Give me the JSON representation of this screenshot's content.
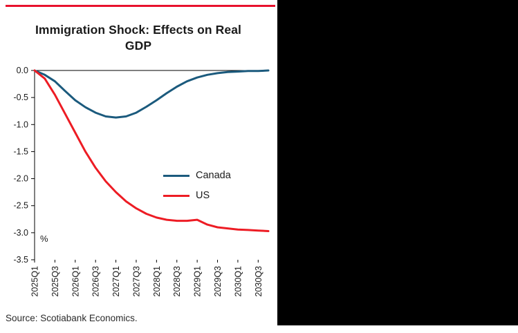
{
  "page": {
    "accent_rule_color": "#e8112d",
    "side_panel_color": "#000000"
  },
  "chart": {
    "title": "Immigration Shock: Effects on Real GDP",
    "unit_label": "%",
    "source": "Source: Scotiabank Economics."
  },
  "chart_data": {
    "type": "line",
    "title": "Immigration Shock: Effects on Real GDP",
    "xlabel": "",
    "ylabel": "%",
    "ylim": [
      -3.5,
      0
    ],
    "yticks": [
      0,
      -0.5,
      -1.0,
      -1.5,
      -2.0,
      -2.5,
      -3.0,
      -3.5
    ],
    "grid": false,
    "legend_position": "center-right",
    "xtick_every": 2,
    "categories": [
      "2025Q1",
      "2025Q2",
      "2025Q3",
      "2025Q4",
      "2026Q1",
      "2026Q2",
      "2026Q3",
      "2026Q4",
      "2027Q1",
      "2027Q2",
      "2027Q3",
      "2027Q4",
      "2028Q1",
      "2028Q2",
      "2028Q3",
      "2028Q4",
      "2029Q1",
      "2029Q2",
      "2029Q3",
      "2029Q4",
      "2030Q1",
      "2030Q2",
      "2030Q3",
      "2030Q4"
    ],
    "series": [
      {
        "name": "Canada",
        "color": "#1b5a7d",
        "values": [
          0.0,
          -0.08,
          -0.2,
          -0.38,
          -0.55,
          -0.68,
          -0.78,
          -0.85,
          -0.87,
          -0.85,
          -0.78,
          -0.67,
          -0.55,
          -0.42,
          -0.3,
          -0.2,
          -0.13,
          -0.08,
          -0.05,
          -0.03,
          -0.02,
          -0.01,
          -0.01,
          0.0
        ]
      },
      {
        "name": "US",
        "color": "#ed1c24",
        "values": [
          0.0,
          -0.15,
          -0.45,
          -0.8,
          -1.15,
          -1.5,
          -1.8,
          -2.05,
          -2.25,
          -2.42,
          -2.55,
          -2.65,
          -2.72,
          -2.76,
          -2.78,
          -2.78,
          -2.76,
          -2.85,
          -2.9,
          -2.92,
          -2.94,
          -2.95,
          -2.96,
          -2.97
        ]
      }
    ]
  }
}
